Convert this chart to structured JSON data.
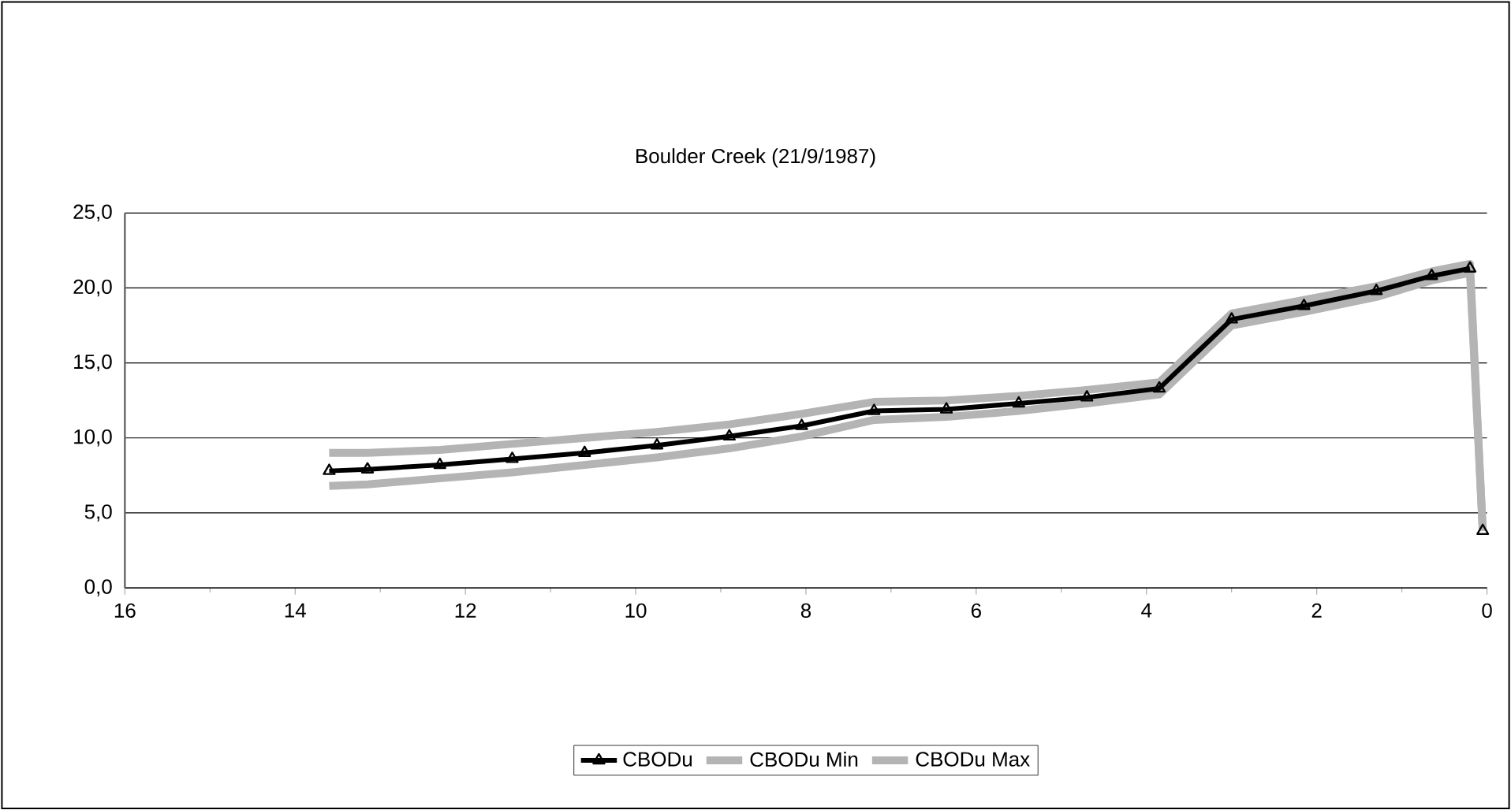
{
  "chart_data": {
    "type": "line",
    "title": "Boulder Creek (21/9/1987)",
    "series": [
      {
        "name": "CBODu",
        "color": "#000000",
        "marker": "triangle",
        "x": [
          13.6,
          13.15,
          12.3,
          11.45,
          10.6,
          9.75,
          8.9,
          8.05,
          7.2,
          6.35,
          5.5,
          4.7,
          3.85,
          3.0,
          2.15,
          1.3,
          0.65,
          0.2,
          0.1,
          0.05
        ],
        "values": [
          7.8,
          7.9,
          8.2,
          8.6,
          9.0,
          9.5,
          10.1,
          10.8,
          11.8,
          11.9,
          12.3,
          12.7,
          13.3,
          17.9,
          18.8,
          19.8,
          20.8,
          21.3,
          null,
          3.8
        ]
      },
      {
        "name": "CBODu Min",
        "color": "#b4b4b4",
        "marker": "none",
        "x": [
          13.6,
          13.15,
          12.3,
          11.45,
          10.6,
          9.75,
          8.9,
          8.05,
          7.2,
          6.35,
          5.5,
          4.7,
          3.85,
          3.0,
          2.15,
          1.3,
          0.65,
          0.2,
          0.05
        ],
        "values": [
          6.8,
          6.9,
          7.3,
          7.7,
          8.2,
          8.7,
          9.3,
          10.1,
          11.2,
          11.4,
          11.8,
          12.3,
          12.9,
          17.5,
          18.4,
          19.4,
          20.5,
          21.0,
          3.8
        ]
      },
      {
        "name": "CBODu Max",
        "color": "#b4b4b4",
        "marker": "none",
        "x": [
          13.6,
          13.15,
          12.3,
          11.45,
          10.6,
          9.75,
          8.9,
          8.05,
          7.2,
          6.35,
          5.5,
          4.7,
          3.85,
          3.0,
          2.15,
          1.3,
          0.65,
          0.2,
          0.05
        ],
        "values": [
          9.0,
          9.0,
          9.2,
          9.6,
          10.0,
          10.4,
          10.9,
          11.6,
          12.4,
          12.5,
          12.8,
          13.2,
          13.7,
          18.3,
          19.2,
          20.1,
          21.1,
          21.6,
          3.8
        ]
      }
    ],
    "xlim": [
      16,
      0
    ],
    "ylim": [
      0,
      25
    ],
    "xticks": [
      0,
      2,
      4,
      6,
      8,
      10,
      12,
      14,
      16
    ],
    "yticks": [
      {
        "value": 0,
        "label": "0,0"
      },
      {
        "value": 5,
        "label": "5,0"
      },
      {
        "value": 10,
        "label": "10,0"
      },
      {
        "value": 15,
        "label": "15,0"
      },
      {
        "value": 20,
        "label": "20,0"
      },
      {
        "value": 25,
        "label": "25,0"
      }
    ],
    "grid": "y",
    "legend": "bottom",
    "line_style": "solid"
  }
}
